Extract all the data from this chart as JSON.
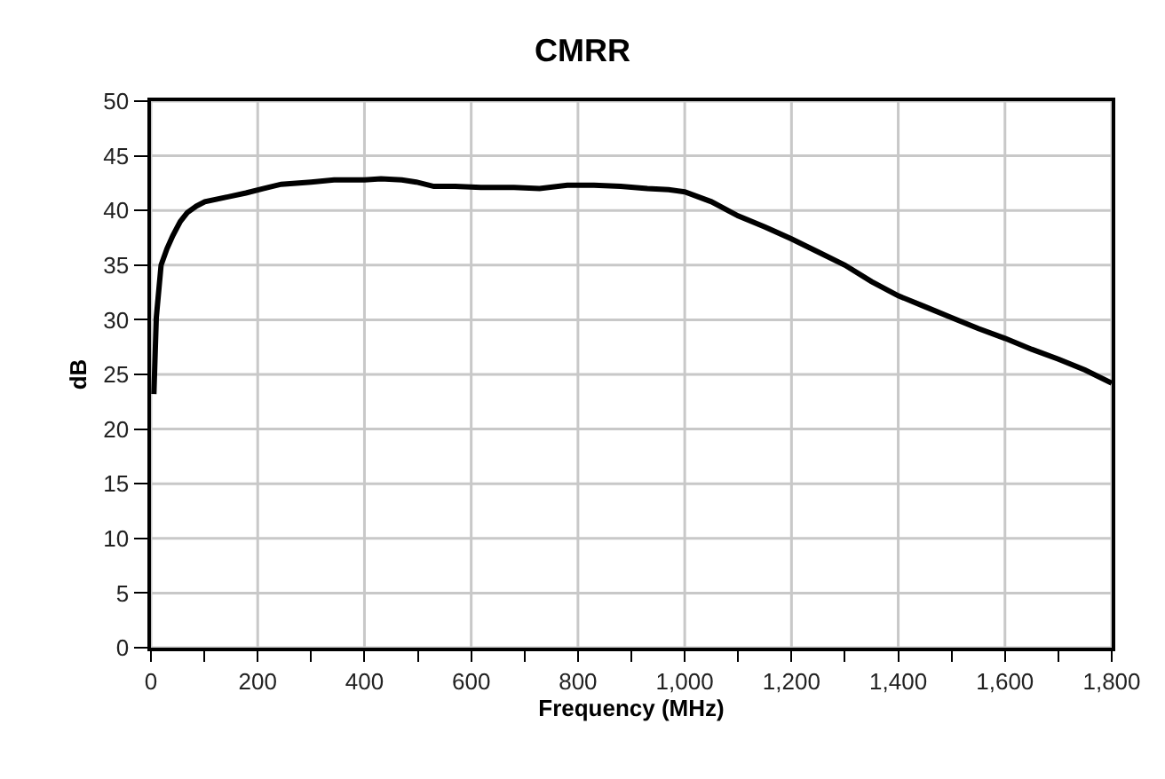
{
  "chart_data": {
    "type": "line",
    "title": "CMRR",
    "xlabel": "Frequency (MHz)",
    "ylabel": "dB",
    "xlim": [
      0,
      1800
    ],
    "ylim": [
      0,
      50
    ],
    "xticks": [
      0,
      {
        "value": 100,
        "label": null
      },
      200,
      {
        "value": 300,
        "label": null
      },
      400,
      {
        "value": 500,
        "label": null
      },
      600,
      {
        "value": 700,
        "label": null
      },
      800,
      {
        "value": 900,
        "label": null
      },
      {
        "value": 1000,
        "label": "1,000"
      },
      {
        "value": 1100,
        "label": null
      },
      {
        "value": 1200,
        "label": "1,200"
      },
      {
        "value": 1300,
        "label": null
      },
      {
        "value": 1400,
        "label": "1,400"
      },
      {
        "value": 1500,
        "label": null
      },
      {
        "value": 1600,
        "label": "1,600"
      },
      {
        "value": 1700,
        "label": null
      },
      {
        "value": 1800,
        "label": "1,800"
      }
    ],
    "yticks": [
      0,
      5,
      10,
      15,
      20,
      25,
      30,
      35,
      40,
      45,
      50
    ],
    "grid": true,
    "marker": "none",
    "line_style": "solid",
    "x": [
      5.5,
      10,
      19,
      30,
      41,
      55,
      68,
      85,
      101,
      140,
      178,
      210,
      244,
      300,
      343,
      400,
      431,
      470,
      497,
      530,
      570,
      618,
      680,
      728,
      780,
      830,
      880,
      930,
      970,
      1000,
      1050,
      1100,
      1150,
      1200,
      1250,
      1300,
      1350,
      1400,
      1450,
      1500,
      1550,
      1600,
      1650,
      1700,
      1750,
      1800
    ],
    "series": [
      {
        "color": "#000000",
        "values": [
          23.2,
          30.2,
          35,
          36.5,
          37.7,
          39,
          39.8,
          40.4,
          40.8,
          41.2,
          41.6,
          42,
          42.4,
          42.6,
          42.8,
          42.8,
          42.9,
          42.8,
          42.6,
          42.2,
          42.2,
          42.1,
          42.1,
          42,
          42.3,
          42.3,
          42.2,
          42,
          41.9,
          41.7,
          40.8,
          39.5,
          38.5,
          37.4,
          36.2,
          35,
          33.5,
          32.2,
          31.2,
          30.2,
          29.2,
          28.3,
          27.3,
          26.4,
          25.4,
          24.2
        ]
      }
    ]
  }
}
